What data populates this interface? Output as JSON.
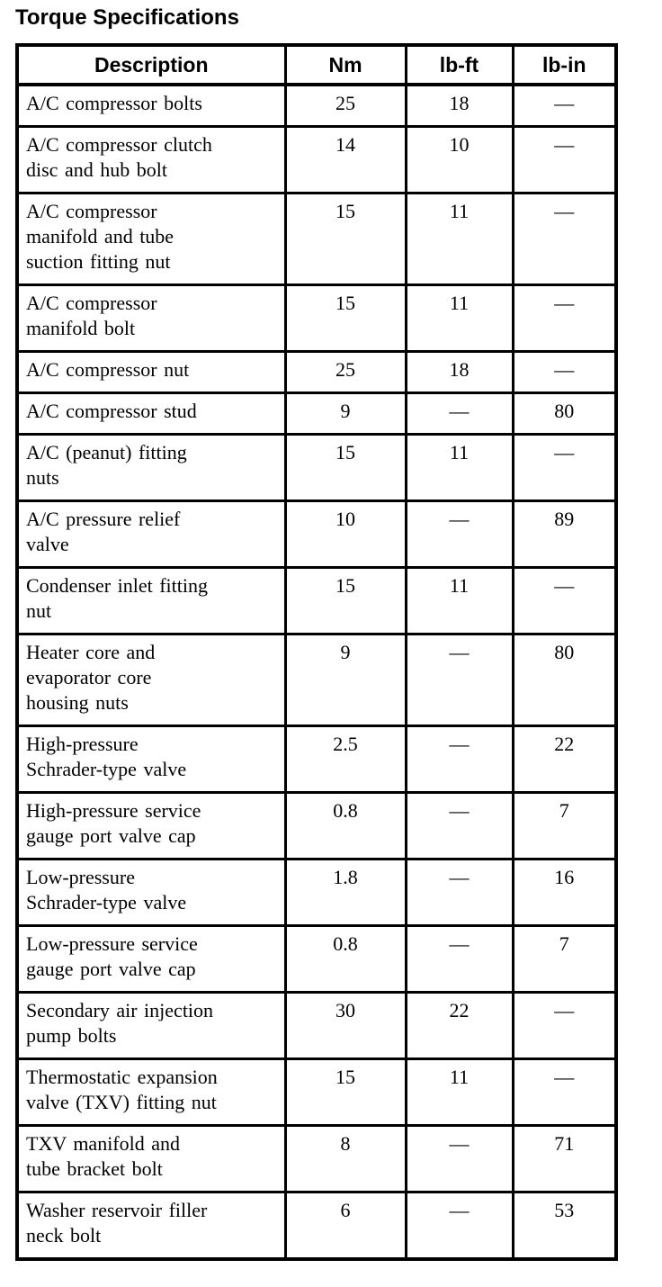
{
  "title": "Torque Specifications",
  "table": {
    "headers": [
      "Description",
      "Nm",
      "lb-ft",
      "lb-in"
    ],
    "rows": [
      {
        "description": "A/C compressor bolts",
        "nm": "25",
        "lb_ft": "18",
        "lb_in": "—"
      },
      {
        "description": "A/C compressor clutch\ndisc and hub bolt",
        "nm": "14",
        "lb_ft": "10",
        "lb_in": "—"
      },
      {
        "description": "A/C compressor\nmanifold and tube\nsuction fitting nut",
        "nm": "15",
        "lb_ft": "11",
        "lb_in": "—"
      },
      {
        "description": "A/C compressor\nmanifold bolt",
        "nm": "15",
        "lb_ft": "11",
        "lb_in": "—"
      },
      {
        "description": "A/C compressor nut",
        "nm": "25",
        "lb_ft": "18",
        "lb_in": "—"
      },
      {
        "description": "A/C compressor stud",
        "nm": "9",
        "lb_ft": "—",
        "lb_in": "80"
      },
      {
        "description": "A/C (peanut) fitting\nnuts",
        "nm": "15",
        "lb_ft": "11",
        "lb_in": "—"
      },
      {
        "description": "A/C pressure relief\nvalve",
        "nm": "10",
        "lb_ft": "—",
        "lb_in": "89"
      },
      {
        "description": "Condenser inlet fitting\nnut",
        "nm": "15",
        "lb_ft": "11",
        "lb_in": "—"
      },
      {
        "description": "Heater core and\nevaporator core\nhousing nuts",
        "nm": "9",
        "lb_ft": "—",
        "lb_in": "80"
      },
      {
        "description": "High-pressure\nSchrader-type valve",
        "nm": "2.5",
        "lb_ft": "—",
        "lb_in": "22"
      },
      {
        "description": "High-pressure service\ngauge port valve cap",
        "nm": "0.8",
        "lb_ft": "—",
        "lb_in": "7"
      },
      {
        "description": "Low-pressure\nSchrader-type valve",
        "nm": "1.8",
        "lb_ft": "—",
        "lb_in": "16"
      },
      {
        "description": "Low-pressure service\ngauge port valve cap",
        "nm": "0.8",
        "lb_ft": "—",
        "lb_in": "7"
      },
      {
        "description": "Secondary air injection\npump bolts",
        "nm": "30",
        "lb_ft": "22",
        "lb_in": "—"
      },
      {
        "description": "Thermostatic expansion\nvalve (TXV) fitting nut",
        "nm": "15",
        "lb_ft": "11",
        "lb_in": "—"
      },
      {
        "description": "TXV manifold and\ntube bracket bolt",
        "nm": "8",
        "lb_ft": "—",
        "lb_in": "71"
      },
      {
        "description": "Washer reservoir filler\nneck bolt",
        "nm": "6",
        "lb_ft": "—",
        "lb_in": "53"
      }
    ]
  }
}
